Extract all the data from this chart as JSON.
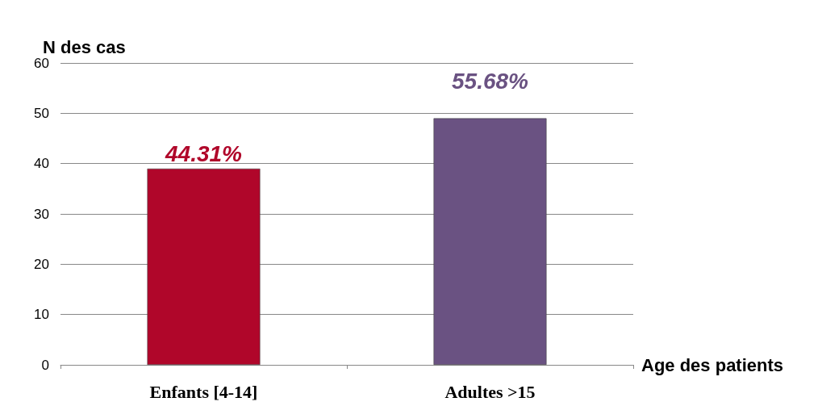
{
  "chart_data": {
    "type": "bar",
    "xlabel": "Age des patients",
    "ylabel": "N des cas",
    "categories": [
      "Enfants [4-14]",
      "Adultes >15"
    ],
    "values": [
      39,
      49
    ],
    "colors": [
      "#b0062a",
      "#6a5282"
    ],
    "annotations": [
      {
        "text": "44.31%",
        "x": "Enfants [4-14]",
        "y": 39
      },
      {
        "text": "55.68%",
        "x": "Adultes >15",
        "y": 49
      }
    ],
    "ylim": [
      0,
      60
    ],
    "yticks": [
      0,
      10,
      20,
      30,
      40,
      50,
      60
    ],
    "grid": "y"
  }
}
